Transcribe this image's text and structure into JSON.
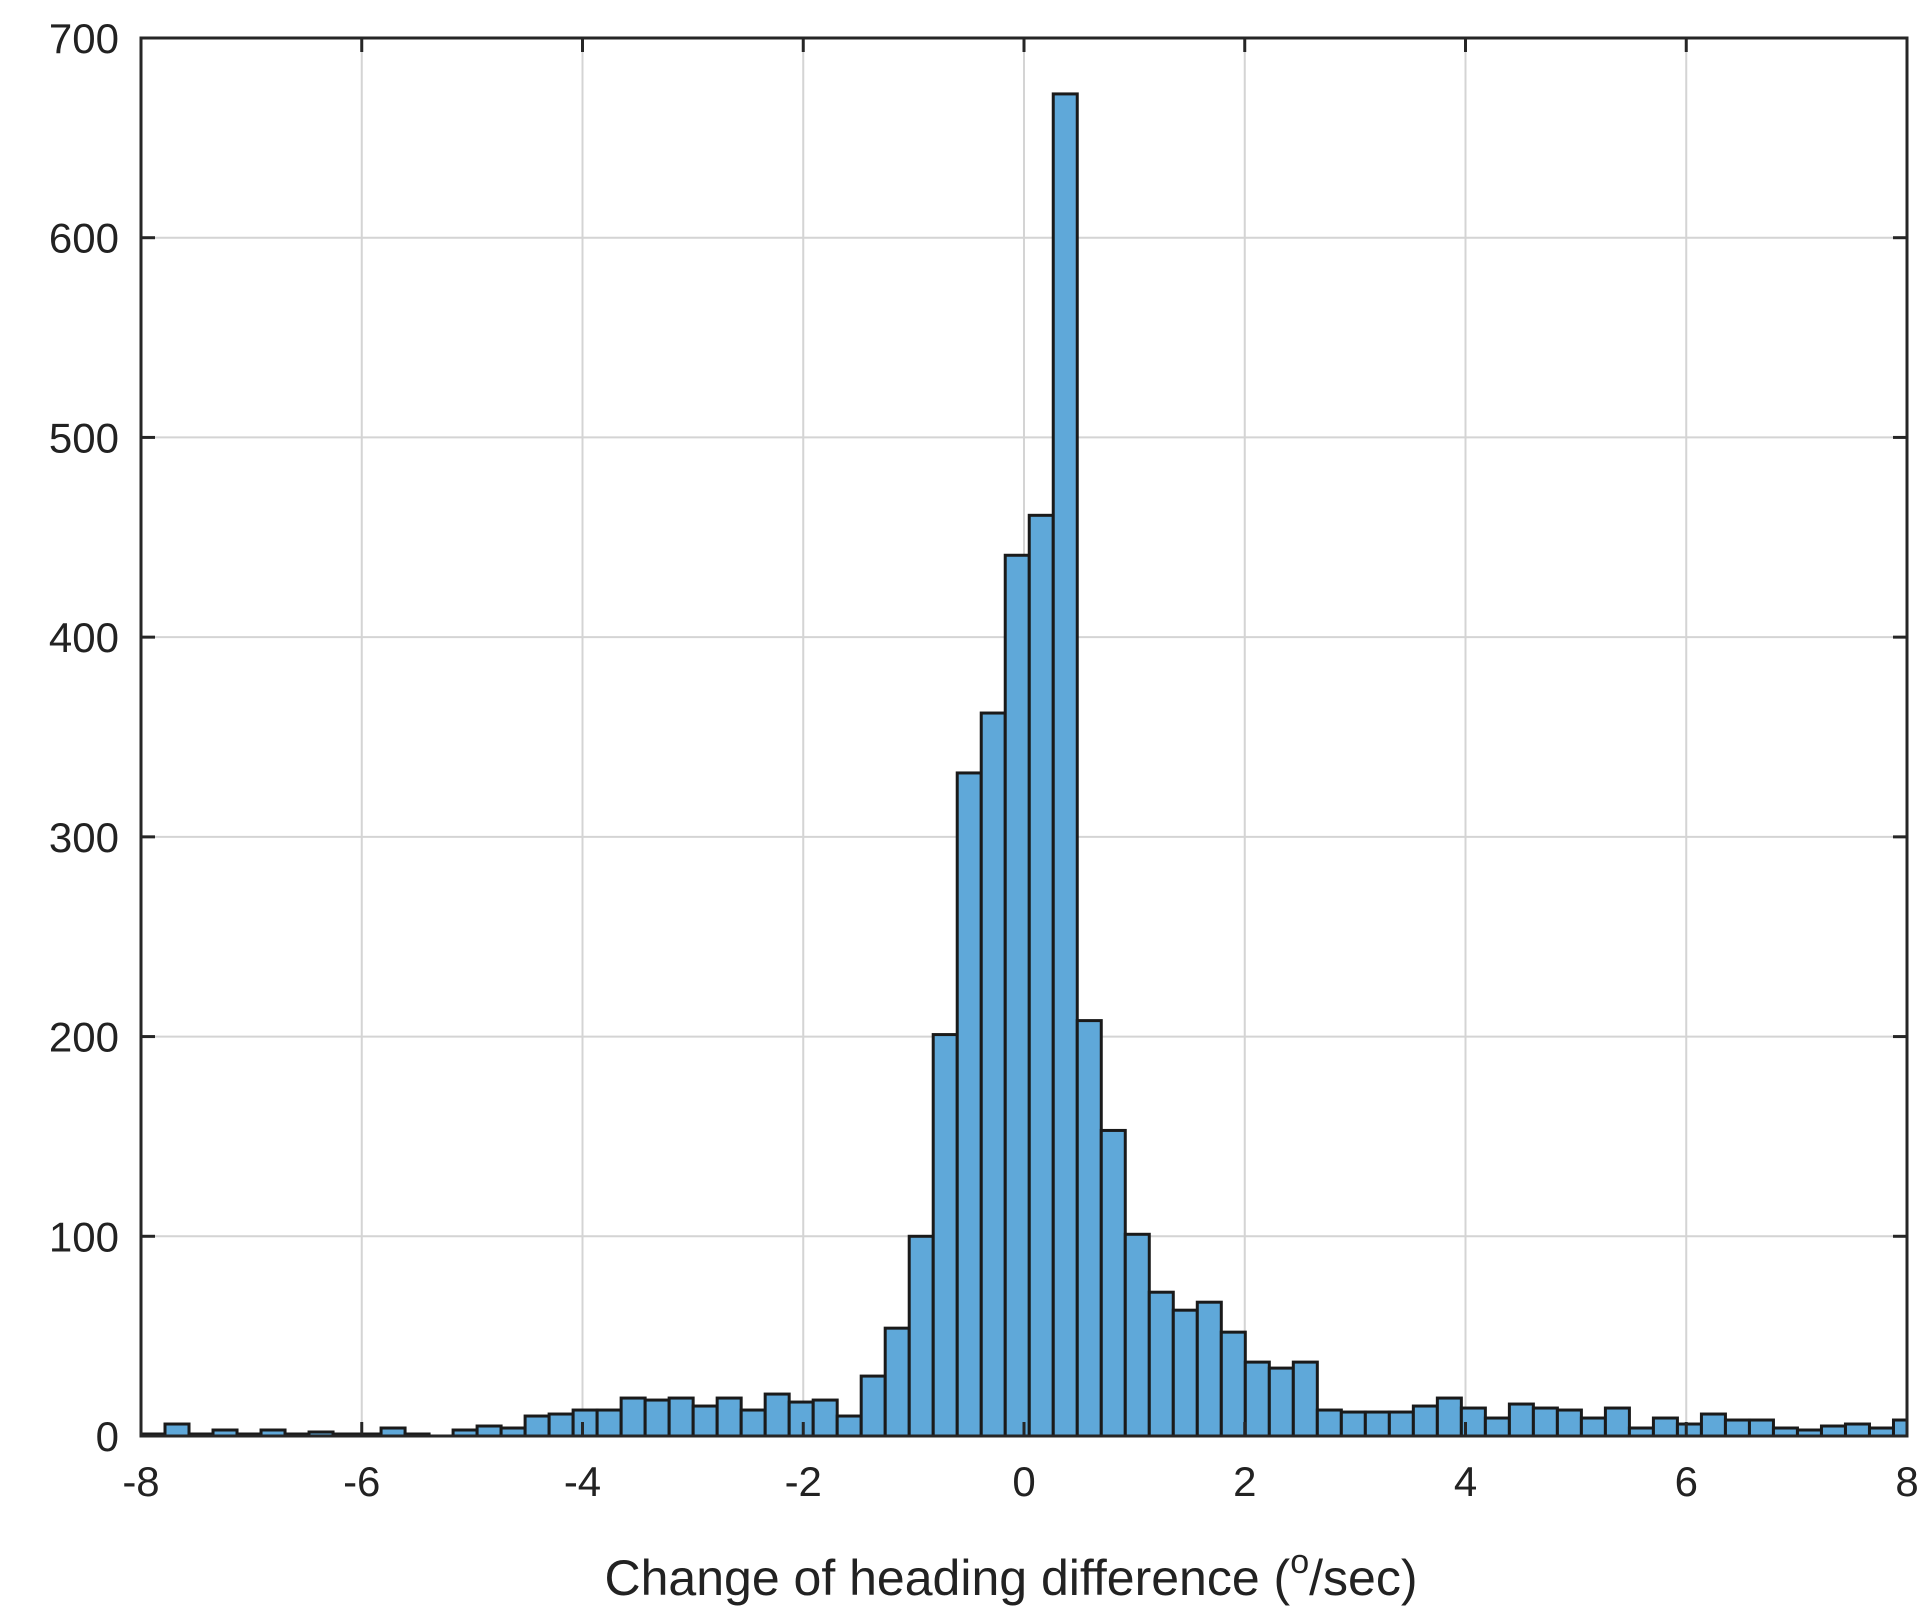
{
  "chart_data": {
    "type": "bar",
    "xlabel": "Change of heading difference (",
    "xlabel_superscript": "o",
    "xlabel_suffix": "/sec)",
    "ylabel": "",
    "xlim": [
      -8,
      8
    ],
    "ylim": [
      0,
      700
    ],
    "xticks": [
      -8,
      -6,
      -4,
      -2,
      0,
      2,
      4,
      6,
      8
    ],
    "xtick_labels": [
      "-8",
      "-6",
      "-4",
      "-2",
      "0",
      "2",
      "4",
      "6",
      "8"
    ],
    "yticks": [
      0,
      100,
      200,
      300,
      400,
      500,
      600,
      700
    ],
    "ytick_labels": [
      "0",
      "100",
      "200",
      "300",
      "400",
      "500",
      "600",
      "700"
    ],
    "grid": true,
    "bar_color": "#5fa8d9",
    "edge_color": "#1a1a1a",
    "bin_width": 0.2175,
    "bin_edges_start": -8,
    "values": [
      1,
      6,
      1,
      3,
      1,
      3,
      1,
      2,
      1,
      1,
      4,
      1,
      0,
      3,
      5,
      4,
      10,
      11,
      13,
      13,
      19,
      18,
      19,
      15,
      19,
      13,
      21,
      17,
      18,
      10,
      30,
      54,
      100,
      201,
      332,
      362,
      441,
      461,
      672,
      208,
      153,
      101,
      72,
      63,
      67,
      52,
      37,
      34,
      37,
      13,
      12,
      12,
      12,
      15,
      19,
      14,
      9,
      16,
      14,
      13,
      9,
      14,
      4,
      9,
      6,
      11,
      8,
      8,
      4,
      3,
      5,
      6,
      4,
      8
    ]
  }
}
